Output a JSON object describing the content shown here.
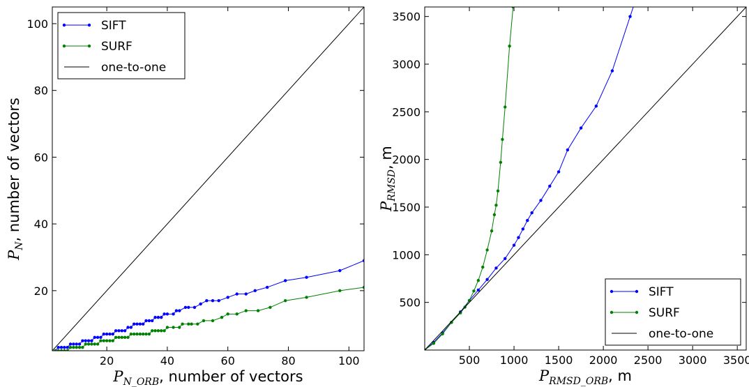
{
  "chart_data": [
    {
      "type": "line",
      "xlabel": {
        "symbol": "P",
        "sub": "N_ORB",
        "text": ", number of vectors"
      },
      "ylabel": {
        "symbol": "P",
        "sub": "N",
        "text": ", number of vectors"
      },
      "xlim": [
        2,
        105
      ],
      "ylim": [
        2,
        105
      ],
      "xticks": [
        20,
        40,
        60,
        80,
        100
      ],
      "yticks": [
        20,
        40,
        60,
        80,
        100
      ],
      "legend": "upper left",
      "series": [
        {
          "name": "SIFT",
          "color": "#0000ff",
          "marker": "o",
          "x": [
            3,
            4,
            5,
            6,
            7,
            8,
            9,
            10,
            11,
            12,
            13,
            14,
            15,
            16,
            17,
            18,
            19,
            20,
            21,
            22,
            23,
            24,
            25,
            26,
            27,
            28,
            29,
            30,
            31,
            32,
            33,
            34,
            35,
            36,
            37,
            38,
            39,
            40,
            42,
            43,
            44,
            46,
            47,
            49,
            51,
            53,
            55,
            57,
            60,
            63,
            66,
            69,
            73,
            79,
            86,
            97,
            105
          ],
          "values": [
            2,
            3,
            3,
            3,
            3,
            4,
            4,
            4,
            4,
            5,
            5,
            5,
            5,
            6,
            6,
            6,
            7,
            7,
            7,
            7,
            8,
            8,
            8,
            8,
            9,
            9,
            10,
            10,
            10,
            10,
            11,
            11,
            11,
            12,
            12,
            12,
            13,
            13,
            13,
            14,
            14,
            15,
            15,
            15,
            16,
            17,
            17,
            17,
            18,
            19,
            19,
            20,
            21,
            23,
            24,
            26,
            29
          ]
        },
        {
          "name": "SURF",
          "color": "#008000",
          "marker": "o",
          "x": [
            3,
            4,
            5,
            6,
            7,
            8,
            9,
            10,
            11,
            12,
            13,
            14,
            15,
            16,
            17,
            18,
            19,
            20,
            21,
            22,
            23,
            24,
            25,
            26,
            27,
            28,
            29,
            30,
            31,
            32,
            33,
            34,
            35,
            36,
            37,
            38,
            39,
            40,
            42,
            44,
            45,
            47,
            48,
            50,
            52,
            55,
            58,
            60,
            63,
            66,
            70,
            74,
            79,
            86,
            97,
            105
          ],
          "values": [
            2,
            2,
            2,
            2,
            2,
            3,
            3,
            3,
            3,
            3,
            4,
            4,
            4,
            4,
            4,
            5,
            5,
            5,
            5,
            5,
            6,
            6,
            6,
            6,
            6,
            7,
            7,
            7,
            7,
            7,
            7,
            7,
            8,
            8,
            8,
            8,
            8,
            9,
            9,
            9,
            10,
            10,
            10,
            10,
            11,
            11,
            12,
            13,
            13,
            14,
            14,
            15,
            17,
            18,
            20,
            21
          ]
        },
        {
          "name": "one-to-one",
          "color": "#000000",
          "x": [
            2,
            105
          ],
          "values": [
            2,
            105
          ]
        }
      ]
    },
    {
      "type": "line",
      "xlabel": {
        "symbol": "P",
        "sub": "RMSD_ORB",
        "text": ", m"
      },
      "ylabel": {
        "symbol": "P",
        "sub": "RMSD",
        "text": ", m"
      },
      "xlim": [
        0,
        3600
      ],
      "ylim": [
        0,
        3600
      ],
      "xticks": [
        500,
        1000,
        1500,
        2000,
        2500,
        3000,
        3500
      ],
      "yticks": [
        500,
        1000,
        1500,
        2000,
        2500,
        3000,
        3500
      ],
      "legend": "lower right",
      "series": [
        {
          "name": "SIFT",
          "color": "#0000ff",
          "marker": "o",
          "x": [
            0,
            100,
            200,
            300,
            400,
            500,
            600,
            700,
            800,
            900,
            1000,
            1050,
            1100,
            1150,
            1200,
            1300,
            1400,
            1500,
            1600,
            1750,
            1920,
            2100,
            2300,
            2350
          ],
          "values": [
            0,
            80,
            180,
            290,
            400,
            520,
            630,
            740,
            860,
            960,
            1100,
            1180,
            1270,
            1360,
            1440,
            1570,
            1720,
            1870,
            2100,
            2330,
            2560,
            2930,
            3500,
            3640
          ]
        },
        {
          "name": "SURF",
          "color": "#008000",
          "marker": "o",
          "x": [
            0,
            100,
            200,
            300,
            400,
            450,
            500,
            550,
            600,
            650,
            700,
            750,
            780,
            800,
            820,
            850,
            870,
            900,
            950,
            990
          ],
          "values": [
            0,
            70,
            170,
            290,
            390,
            450,
            520,
            620,
            730,
            870,
            1050,
            1250,
            1420,
            1520,
            1670,
            1970,
            2210,
            2550,
            3190,
            3600
          ]
        },
        {
          "name": "one-to-one",
          "color": "#000000",
          "x": [
            0,
            3600
          ],
          "values": [
            0,
            3600
          ]
        }
      ]
    }
  ]
}
